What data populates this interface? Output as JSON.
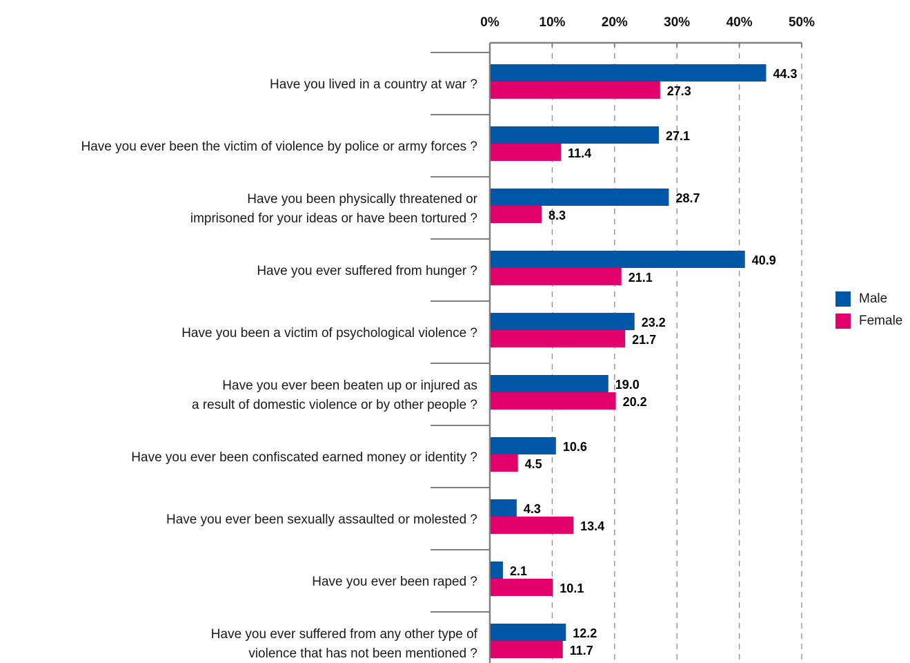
{
  "chart_data": {
    "type": "bar",
    "orientation": "horizontal",
    "categories": [
      [
        "Have you lived in a country at war ?"
      ],
      [
        "Have you ever been the victim of violence by police or army forces ?"
      ],
      [
        "Have you been physically threatened or",
        "imprisoned for your ideas or have been tortured ?"
      ],
      [
        "Have you ever suffered from hunger ?"
      ],
      [
        "Have you been a victim of psychological violence ?"
      ],
      [
        "Have you ever been beaten up or injured as",
        "a result of domestic violence or by other people ?"
      ],
      [
        "Have you ever been confiscated earned money or identity ?"
      ],
      [
        "Have you ever been sexually assaulted or molested ?"
      ],
      [
        "Have you ever been raped ?"
      ],
      [
        "Have you ever suffered from any other type of",
        "violence that has not been mentioned ?"
      ]
    ],
    "series": [
      {
        "name": "Male",
        "color": "#0057a8",
        "values": [
          44.3,
          27.1,
          28.7,
          40.9,
          23.2,
          19.0,
          10.6,
          4.3,
          2.1,
          12.2
        ],
        "labels": [
          "44.3",
          "27.1",
          "28.7",
          "40.9",
          "23.2",
          "19.0",
          "10.6",
          "4.3",
          "2.1",
          "12.2"
        ]
      },
      {
        "name": "Female",
        "color": "#e2006b",
        "values": [
          27.3,
          11.4,
          8.3,
          21.1,
          21.7,
          20.2,
          4.5,
          13.4,
          10.1,
          11.7
        ],
        "labels": [
          "27.3",
          "11.4",
          "8.3",
          "21.1",
          "21.7",
          "20.2",
          "4.5",
          "13.4",
          "10.1",
          "11.7"
        ]
      }
    ],
    "xlim": [
      0,
      50
    ],
    "xticks": [
      "0%",
      "10%",
      "20%",
      "30%",
      "40%",
      "50%"
    ],
    "x_axis_position": "top",
    "grid": "vertical dashed",
    "legend_position": "right"
  }
}
